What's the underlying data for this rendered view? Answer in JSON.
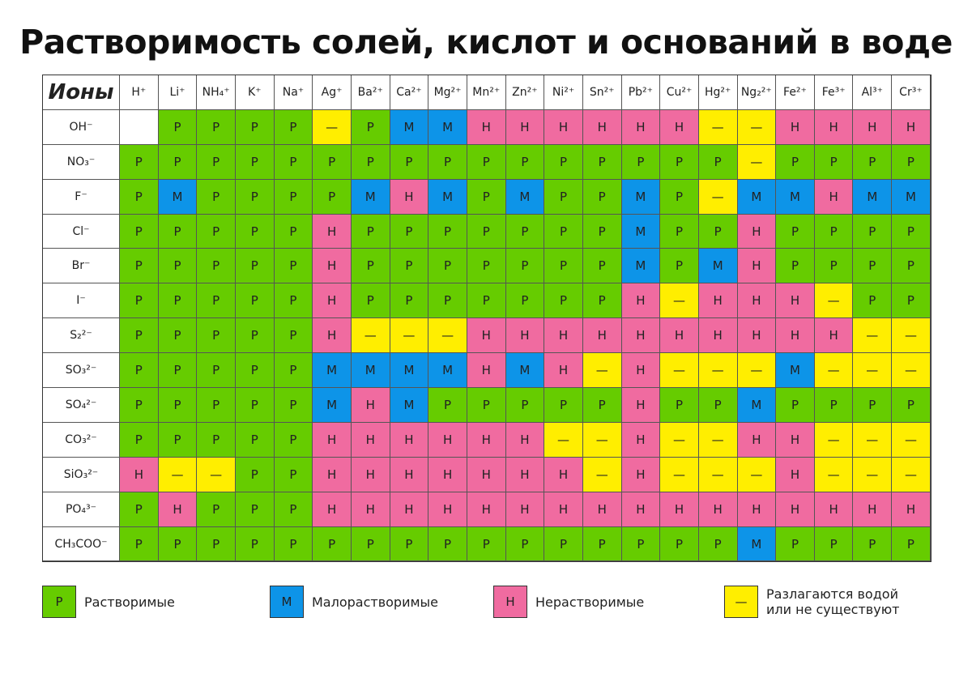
{
  "title": "Растворимость солей, кислот и оснований в воде",
  "table": {
    "corner": "Ионы",
    "columns": [
      "H⁺",
      "Li⁺",
      "NH₄⁺",
      "K⁺",
      "Na⁺",
      "Ag⁺",
      "Ba²⁺",
      "Ca²⁺",
      "Mg²⁺",
      "Mn²⁺",
      "Zn²⁺",
      "Ni²⁺",
      "Sn²⁺",
      "Pb²⁺",
      "Cu²⁺",
      "Hg²⁺",
      "Ng₂²⁺",
      "Fe²⁺",
      "Fe³⁺",
      "Al³⁺",
      "Cr³⁺"
    ],
    "rows": [
      {
        "ion": "OH⁻",
        "cells": [
          null,
          "Р",
          "Р",
          "Р",
          "Р",
          "—",
          "Р",
          "М",
          "М",
          "Н",
          "Н",
          "Н",
          "Н",
          "Н",
          "Н",
          "—",
          "—",
          "Н",
          "Н",
          "Н",
          "Н"
        ]
      },
      {
        "ion": "NO₃⁻",
        "cells": [
          "Р",
          "Р",
          "Р",
          "Р",
          "Р",
          "Р",
          "Р",
          "Р",
          "Р",
          "Р",
          "Р",
          "Р",
          "Р",
          "Р",
          "Р",
          "Р",
          "—",
          "Р",
          "Р",
          "Р",
          "Р"
        ]
      },
      {
        "ion": "F⁻",
        "cells": [
          "Р",
          "М",
          "Р",
          "Р",
          "Р",
          "Р",
          "М",
          "Н",
          "М",
          "Р",
          "М",
          "Р",
          "Р",
          "М",
          "Р",
          "—",
          "М",
          "М",
          "Н",
          "М",
          "М"
        ]
      },
      {
        "ion": "Cl⁻",
        "cells": [
          "Р",
          "Р",
          "Р",
          "Р",
          "Р",
          "Н",
          "Р",
          "Р",
          "Р",
          "Р",
          "Р",
          "Р",
          "Р",
          "М",
          "Р",
          "Р",
          "Н",
          "Р",
          "Р",
          "Р",
          "Р"
        ]
      },
      {
        "ion": "Br⁻",
        "cells": [
          "Р",
          "Р",
          "Р",
          "Р",
          "Р",
          "Н",
          "Р",
          "Р",
          "Р",
          "Р",
          "Р",
          "Р",
          "Р",
          "М",
          "Р",
          "М",
          "Н",
          "Р",
          "Р",
          "Р",
          "Р"
        ]
      },
      {
        "ion": "I⁻",
        "cells": [
          "Р",
          "Р",
          "Р",
          "Р",
          "Р",
          "Н",
          "Р",
          "Р",
          "Р",
          "Р",
          "Р",
          "Р",
          "Р",
          "Н",
          "—",
          "Н",
          "Н",
          "Н",
          "—",
          "Р",
          "Р"
        ]
      },
      {
        "ion": "S₂²⁻",
        "cells": [
          "Р",
          "Р",
          "Р",
          "Р",
          "Р",
          "Н",
          "—",
          "—",
          "—",
          "Н",
          "Н",
          "Н",
          "Н",
          "Н",
          "Н",
          "Н",
          "Н",
          "Н",
          "Н",
          "—",
          "—"
        ]
      },
      {
        "ion": "SO₃²⁻",
        "cells": [
          "Р",
          "Р",
          "Р",
          "Р",
          "Р",
          "М",
          "М",
          "М",
          "М",
          "Н",
          "М",
          "Н",
          "—",
          "Н",
          "—",
          "—",
          "—",
          "М",
          "—",
          "—",
          "—"
        ]
      },
      {
        "ion": "SO₄²⁻",
        "cells": [
          "Р",
          "Р",
          "Р",
          "Р",
          "Р",
          "М",
          "Н",
          "М",
          "Р",
          "Р",
          "Р",
          "Р",
          "Р",
          "Н",
          "Р",
          "Р",
          "М",
          "Р",
          "Р",
          "Р",
          "Р"
        ]
      },
      {
        "ion": "CO₃²⁻",
        "cells": [
          "Р",
          "Р",
          "Р",
          "Р",
          "Р",
          "Н",
          "Н",
          "Н",
          "Н",
          "Н",
          "Н",
          "—",
          "—",
          "Н",
          "—",
          "—",
          "Н",
          "Н",
          "—",
          "—",
          "—"
        ]
      },
      {
        "ion": "SiO₃²⁻",
        "cells": [
          "Н",
          "—",
          "—",
          "Р",
          "Р",
          "Н",
          "Н",
          "Н",
          "Н",
          "Н",
          "Н",
          "Н",
          "—",
          "Н",
          "—",
          "—",
          "—",
          "Н",
          "—",
          "—",
          "—"
        ]
      },
      {
        "ion": "PO₄³⁻",
        "cells": [
          "Р",
          "Н",
          "Р",
          "Р",
          "Р",
          "Н",
          "Н",
          "Н",
          "Н",
          "Н",
          "Н",
          "Н",
          "Н",
          "Н",
          "Н",
          "Н",
          "Н",
          "Н",
          "Н",
          "Н",
          "Н"
        ]
      },
      {
        "ion": "CH₃COO⁻",
        "cells": [
          "Р",
          "Р",
          "Р",
          "Р",
          "Р",
          "Р",
          "Р",
          "Р",
          "Р",
          "Р",
          "Р",
          "Р",
          "Р",
          "Р",
          "Р",
          "Р",
          "М",
          "Р",
          "Р",
          "Р",
          "Р"
        ]
      }
    ]
  },
  "legend": [
    {
      "symbol": "Р",
      "lines": [
        "Растворимые"
      ],
      "color": "#66cc00"
    },
    {
      "symbol": "М",
      "lines": [
        "Малорастворимые"
      ],
      "color": "#0d94e8"
    },
    {
      "symbol": "Н",
      "lines": [
        "Нерастворимые"
      ],
      "color": "#f06ba0"
    },
    {
      "symbol": "—",
      "lines": [
        "Разлагаются водой",
        "или не существуют"
      ],
      "color": "#ffee00"
    }
  ]
}
